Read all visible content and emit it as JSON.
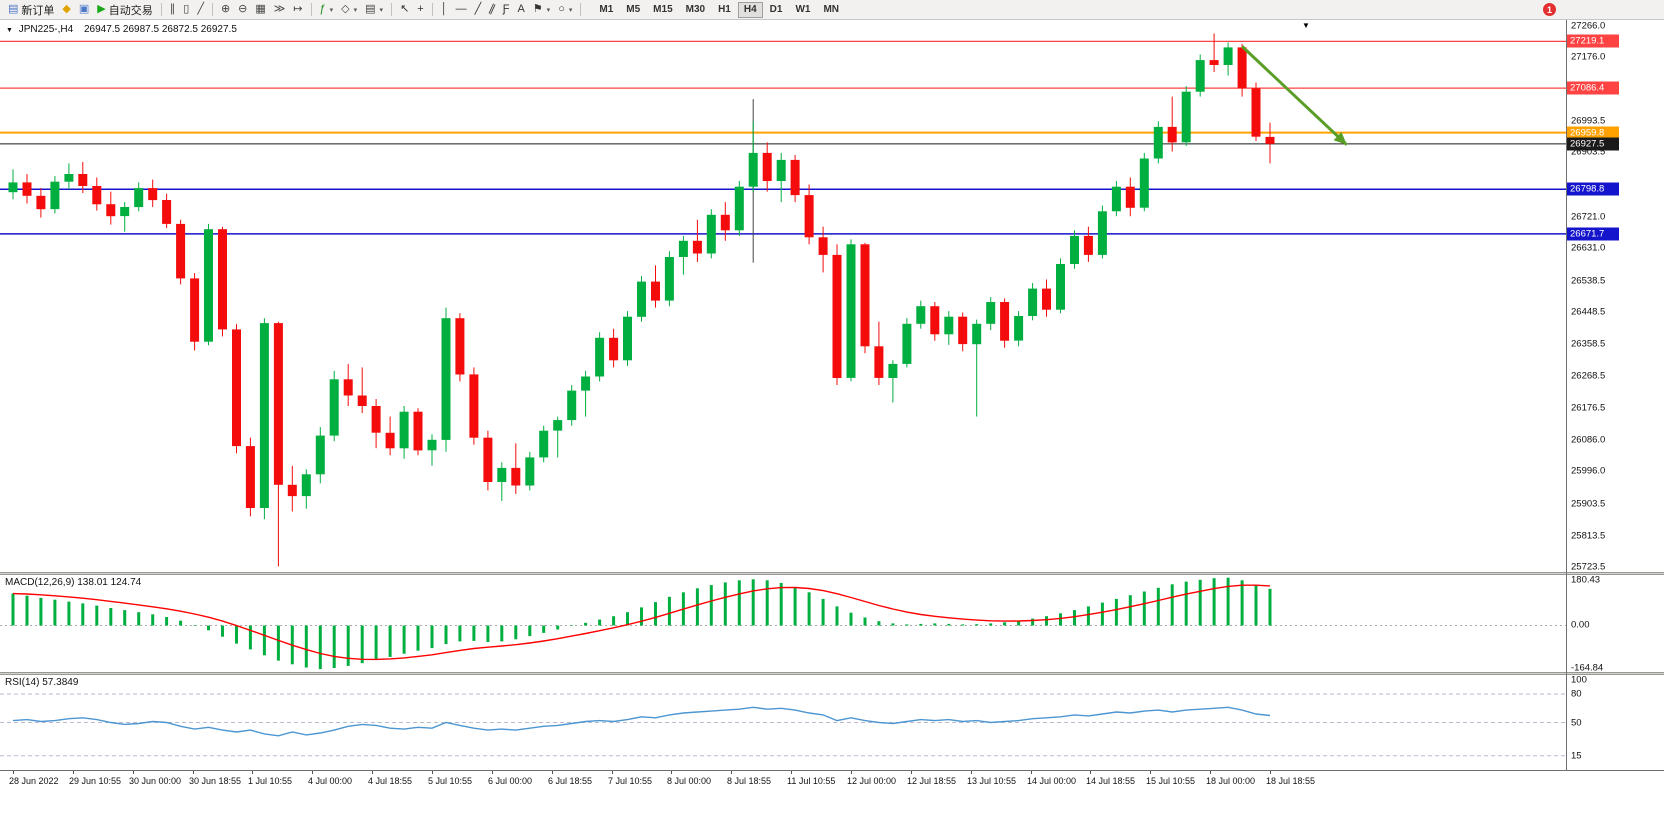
{
  "toolbar": {
    "items": [
      {
        "name": "new-order-button",
        "glyph": "▤",
        "glyph_color": "#4a78c8",
        "label": "新订单"
      },
      {
        "name": "metaeditor-button",
        "glyph": "◆",
        "glyph_color": "#e0a400"
      },
      {
        "name": "algo-button",
        "glyph": "▣",
        "glyph_color": "#4a78c8"
      },
      {
        "name": "autotrading-button",
        "glyph": "▶",
        "glyph_color": "#18a818",
        "label": "自动交易"
      },
      {
        "type": "sep"
      },
      {
        "name": "bars-button",
        "glyph": "∥",
        "glyph_color": "#444"
      },
      {
        "name": "candlesticks-button",
        "glyph": "▯",
        "glyph_color": "#444"
      },
      {
        "name": "line-chart-button",
        "glyph": "╱",
        "glyph_color": "#444"
      },
      {
        "type": "sep"
      },
      {
        "name": "zoom-in-button",
        "glyph": "⊕",
        "glyph_color": "#444"
      },
      {
        "name": "zoom-out-button",
        "glyph": "⊖",
        "glyph_color": "#444"
      },
      {
        "name": "tile-windows-button",
        "glyph": "▦",
        "glyph_color": "#444"
      },
      {
        "name": "auto-scroll-button",
        "glyph": "≫",
        "glyph_color": "#444"
      },
      {
        "name": "chart-shift-button",
        "glyph": "↦",
        "glyph_color": "#444"
      },
      {
        "type": "sep"
      },
      {
        "name": "indicators-button",
        "glyph": "ƒ",
        "glyph_color": "#1a8a1a",
        "caret": true
      },
      {
        "name": "periods-button",
        "glyph": "◇",
        "glyph_color": "#444",
        "caret": true
      },
      {
        "name": "templates-button",
        "glyph": "▤",
        "glyph_color": "#444",
        "caret": true
      },
      {
        "type": "sep"
      },
      {
        "name": "cursor-button",
        "glyph": "↖",
        "glyph_color": "#333"
      },
      {
        "name": "crosshair-button",
        "glyph": "+",
        "glyph_color": "#333"
      },
      {
        "type": "sep"
      },
      {
        "name": "vertical-line-button",
        "glyph": "│",
        "glyph_color": "#333"
      },
      {
        "name": "horizontal-line-button",
        "glyph": "―",
        "glyph_color": "#333"
      },
      {
        "name": "trendline-button",
        "glyph": "╱",
        "glyph_color": "#333"
      },
      {
        "name": "channel-button",
        "glyph": "∥",
        "glyph_color": "#333",
        "rotate": 25
      },
      {
        "name": "fibonacci-button",
        "glyph": "Ƒ",
        "glyph_color": "#333"
      },
      {
        "name": "text-button",
        "glyph": "A",
        "glyph_color": "#333"
      },
      {
        "name": "arrows-button",
        "glyph": "⚑",
        "glyph_color": "#333",
        "caret": true
      },
      {
        "name": "shapes-button",
        "glyph": "○",
        "glyph_color": "#333",
        "caret": true
      },
      {
        "type": "sep"
      }
    ],
    "timeframes": [
      "M1",
      "M5",
      "M15",
      "M30",
      "H1",
      "H4",
      "D1",
      "W1",
      "MN"
    ],
    "active_timeframe": "H4",
    "notification_count": "1"
  },
  "chart_header": {
    "collapse_icon": "▼",
    "symbol": "JPN225-,H4",
    "ohlc": "26947.5 26987.5 26872.5 26927.5",
    "shift_marker": "▼"
  },
  "chart_data": [
    {
      "type": "candlestick",
      "symbol": "JPN225-",
      "timeframe": "H4",
      "up_color": "#00AF3F",
      "down_color": "#F40B0B",
      "y_range": [
        25710,
        27280
      ],
      "y_ticks": [
        27266.0,
        27176.0,
        26993.5,
        26903.5,
        26721.0,
        26631.0,
        26538.5,
        26448.5,
        26358.5,
        26268.5,
        26176.5,
        26086.0,
        25996.0,
        25903.5,
        25813.5,
        25723.5
      ],
      "price_lines": [
        {
          "price": 27219.1,
          "label": "27219.1",
          "color": "#FF4242",
          "width": 1.3
        },
        {
          "price": 27086.4,
          "label": "27086.4",
          "color": "#FF4242",
          "width": 1.3
        },
        {
          "price": 26959.8,
          "label": "26959.8",
          "color": "#FFA200",
          "width": 2
        },
        {
          "price": 26927.5,
          "label": "26927.5",
          "color": "#1A1A1A",
          "width": 1,
          "role": "last-price"
        },
        {
          "price": 26798.8,
          "label": "26798.8",
          "color": "#1414CC",
          "width": 1.5
        },
        {
          "price": 26671.7,
          "label": "26671.7",
          "color": "#1414CC",
          "width": 1.5
        }
      ],
      "vertical_line": {
        "candle": 53,
        "from": 27055,
        "to": 26590
      },
      "trend_arrow": {
        "from_candle": 88,
        "from_price": 27205,
        "to_candle": 95.5,
        "to_price": 26925,
        "color": "#5A9E28"
      },
      "x_labels": [
        "28 Jun 2022",
        "29 Jun 10:55",
        "30 Jun 00:00",
        "30 Jun 18:55",
        "1 Jul 10:55",
        "4 Jul 00:00",
        "4 Jul 18:55",
        "5 Jul 10:55",
        "6 Jul 00:00",
        "6 Jul 18:55",
        "7 Jul 10:55",
        "8 Jul 00:00",
        "8 Jul 18:55",
        "11 Jul 10:55",
        "12 Jul 00:00",
        "12 Jul 18:55",
        "13 Jul 10:55",
        "14 Jul 00:00",
        "14 Jul 18:55",
        "15 Jul 10:55",
        "18 Jul 00:00",
        "18 Jul 18:55"
      ],
      "candles": [
        [
          26790,
          26855,
          26770,
          26818
        ],
        [
          26818,
          26842,
          26758,
          26780
        ],
        [
          26780,
          26802,
          26718,
          26742
        ],
        [
          26742,
          26836,
          26730,
          26820
        ],
        [
          26820,
          26872,
          26798,
          26842
        ],
        [
          26842,
          26876,
          26788,
          26808
        ],
        [
          26808,
          26832,
          26738,
          26756
        ],
        [
          26756,
          26792,
          26698,
          26722
        ],
        [
          26722,
          26762,
          26678,
          26748
        ],
        [
          26748,
          26818,
          26736,
          26802
        ],
        [
          26802,
          26826,
          26748,
          26768
        ],
        [
          26768,
          26786,
          26688,
          26700
        ],
        [
          26700,
          26712,
          26528,
          26545
        ],
        [
          26545,
          26560,
          26340,
          26365
        ],
        [
          26365,
          26700,
          26355,
          26685
        ],
        [
          26685,
          26692,
          26380,
          26400
        ],
        [
          26400,
          26415,
          26048,
          26068
        ],
        [
          26068,
          26092,
          25868,
          25892
        ],
        [
          25892,
          26432,
          25860,
          26418
        ],
        [
          26418,
          26422,
          25726,
          25958
        ],
        [
          25958,
          26012,
          25882,
          25926
        ],
        [
          25926,
          26002,
          25890,
          25988
        ],
        [
          25988,
          26122,
          25962,
          26098
        ],
        [
          26098,
          26282,
          26082,
          26258
        ],
        [
          26258,
          26302,
          26182,
          26212
        ],
        [
          26212,
          26292,
          26162,
          26182
        ],
        [
          26182,
          26202,
          26062,
          26106
        ],
        [
          26106,
          26152,
          26042,
          26062
        ],
        [
          26062,
          26182,
          26032,
          26166
        ],
        [
          26166,
          26176,
          26042,
          26056
        ],
        [
          26056,
          26102,
          26012,
          26086
        ],
        [
          26086,
          26462,
          26052,
          26432
        ],
        [
          26432,
          26446,
          26252,
          26272
        ],
        [
          26272,
          26292,
          26072,
          26092
        ],
        [
          26092,
          26112,
          25942,
          25966
        ],
        [
          25966,
          26022,
          25912,
          26006
        ],
        [
          26006,
          26076,
          25932,
          25956
        ],
        [
          25956,
          26052,
          25942,
          26036
        ],
        [
          26036,
          26126,
          26022,
          26112
        ],
        [
          26112,
          26152,
          26036,
          26142
        ],
        [
          26142,
          26242,
          26126,
          26226
        ],
        [
          26226,
          26282,
          26152,
          26266
        ],
        [
          26266,
          26392,
          26252,
          26376
        ],
        [
          26376,
          26402,
          26292,
          26312
        ],
        [
          26312,
          26452,
          26296,
          26436
        ],
        [
          26436,
          26552,
          26422,
          26536
        ],
        [
          26536,
          26582,
          26462,
          26482
        ],
        [
          26482,
          26622,
          26466,
          26606
        ],
        [
          26606,
          26666,
          26556,
          26652
        ],
        [
          26652,
          26712,
          26592,
          26616
        ],
        [
          26616,
          26742,
          26602,
          26726
        ],
        [
          26726,
          26762,
          26652,
          26682
        ],
        [
          26682,
          26822,
          26666,
          26806
        ],
        [
          26806,
          26992,
          26790,
          26902
        ],
        [
          26902,
          26932,
          26792,
          26822
        ],
        [
          26822,
          26902,
          26762,
          26882
        ],
        [
          26882,
          26896,
          26762,
          26782
        ],
        [
          26782,
          26812,
          26642,
          26662
        ],
        [
          26662,
          26692,
          26562,
          26612
        ],
        [
          26612,
          26642,
          26242,
          26262
        ],
        [
          26262,
          26656,
          26252,
          26642
        ],
        [
          26642,
          26646,
          26332,
          26352
        ],
        [
          26352,
          26422,
          26242,
          26262
        ],
        [
          26262,
          26312,
          26192,
          26302
        ],
        [
          26302,
          26432,
          26292,
          26416
        ],
        [
          26416,
          26482,
          26402,
          26466
        ],
        [
          26466,
          26478,
          26368,
          26386
        ],
        [
          26386,
          26452,
          26356,
          26436
        ],
        [
          26436,
          26448,
          26338,
          26358
        ],
        [
          26358,
          26428,
          26152,
          26416
        ],
        [
          26416,
          26492,
          26398,
          26478
        ],
        [
          26478,
          26488,
          26348,
          26368
        ],
        [
          26368,
          26452,
          26352,
          26438
        ],
        [
          26438,
          26532,
          26426,
          26516
        ],
        [
          26516,
          26542,
          26436,
          26456
        ],
        [
          26456,
          26602,
          26446,
          26586
        ],
        [
          26586,
          26682,
          26572,
          26666
        ],
        [
          26666,
          26692,
          26592,
          26612
        ],
        [
          26612,
          26752,
          26602,
          26736
        ],
        [
          26736,
          26822,
          26722,
          26806
        ],
        [
          26806,
          26832,
          26722,
          26746
        ],
        [
          26746,
          26902,
          26736,
          26886
        ],
        [
          26886,
          26992,
          26872,
          26976
        ],
        [
          26976,
          27062,
          26906,
          26932
        ],
        [
          26932,
          27092,
          26922,
          27076
        ],
        [
          27076,
          27182,
          27062,
          27166
        ],
        [
          27166,
          27242,
          27132,
          27152
        ],
        [
          27152,
          27216,
          27122,
          27202
        ],
        [
          27202,
          27212,
          27062,
          27086
        ],
        [
          27086,
          27102,
          26936,
          26948
        ],
        [
          26947.5,
          26987.5,
          26872.5,
          26927.5
        ]
      ]
    },
    {
      "type": "macd",
      "label": "MACD(12,26,9)",
      "main_value_str": "138.01",
      "signal_value_str": "124.74",
      "histogram_color": "#00AF3F",
      "signal_color": "#FF0000",
      "y_range": [
        -175,
        190
      ],
      "y_ticks": [
        180.43,
        0,
        -164.84
      ],
      "signal_period": 9,
      "histogram": [
        120,
        112,
        104,
        97,
        90,
        83,
        75,
        66,
        58,
        50,
        42,
        32,
        18,
        2,
        -18,
        -42,
        -68,
        -90,
        -112,
        -132,
        -146,
        -158,
        -164,
        -160,
        -152,
        -142,
        -130,
        -118,
        -106,
        -95,
        -85,
        -70,
        -60,
        -58,
        -62,
        -60,
        -52,
        -40,
        -28,
        -15,
        -2,
        10,
        22,
        35,
        50,
        68,
        88,
        108,
        125,
        140,
        152,
        162,
        170,
        174,
        170,
        160,
        145,
        125,
        100,
        72,
        48,
        30,
        16,
        8,
        4,
        6,
        8,
        6,
        4,
        5,
        8,
        12,
        18,
        26,
        35,
        46,
        58,
        72,
        86,
        100,
        114,
        128,
        142,
        155,
        165,
        172,
        178,
        180,
        170,
        152,
        138
      ]
    },
    {
      "type": "rsi-line",
      "label": "RSI(14)",
      "value_str": "57.3849",
      "line_color": "#4D96D2",
      "y_range": [
        0,
        100
      ],
      "y_ticks": [
        100,
        80,
        50,
        15
      ],
      "levels": [
        80,
        50,
        15
      ],
      "values": [
        52,
        53,
        51,
        52,
        54,
        55,
        53,
        50,
        48,
        49,
        51,
        50,
        46,
        43,
        45,
        42,
        40,
        42,
        38,
        36,
        40,
        37,
        39,
        42,
        46,
        48,
        47,
        44,
        43,
        45,
        44,
        50,
        47,
        44,
        42,
        43,
        42,
        44,
        46,
        47,
        49,
        51,
        52,
        51,
        53,
        56,
        55,
        58,
        60,
        61,
        62,
        63,
        64,
        66,
        64,
        65,
        63,
        60,
        58,
        52,
        55,
        52,
        50,
        49,
        51,
        53,
        52,
        53,
        51,
        52,
        50,
        51,
        52,
        54,
        55,
        56,
        58,
        57,
        59,
        61,
        60,
        62,
        63,
        61,
        63,
        64,
        65,
        66,
        63,
        59,
        57.38
      ]
    }
  ]
}
